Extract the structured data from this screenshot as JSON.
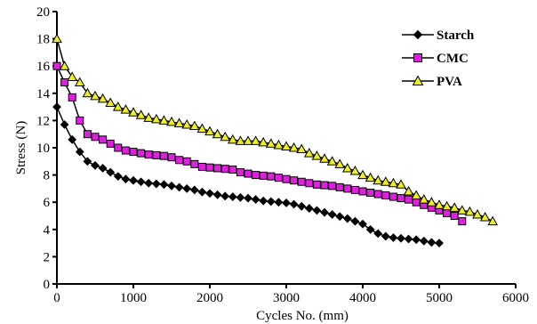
{
  "chart_data": {
    "type": "line",
    "xlabel": "Cycles No. (mm)",
    "ylabel": "Stress (N)",
    "xlim": [
      0,
      6000
    ],
    "ylim": [
      0,
      20
    ],
    "x_ticks": [
      0,
      1000,
      2000,
      3000,
      4000,
      5000,
      6000
    ],
    "y_ticks": [
      0,
      2,
      4,
      6,
      8,
      10,
      12,
      14,
      16,
      18,
      20
    ],
    "grid": false,
    "legend_position": "top-right",
    "series": [
      {
        "name": "Starch",
        "marker": "diamond",
        "color": "#000000",
        "fill": "#000000",
        "x": [
          0,
          100,
          200,
          300,
          400,
          500,
          600,
          700,
          800,
          900,
          1000,
          1100,
          1200,
          1300,
          1400,
          1500,
          1600,
          1700,
          1800,
          1900,
          2000,
          2100,
          2200,
          2300,
          2400,
          2500,
          2600,
          2700,
          2800,
          2900,
          3000,
          3100,
          3200,
          3300,
          3400,
          3500,
          3600,
          3700,
          3800,
          3900,
          4000,
          4100,
          4200,
          4300,
          4400,
          4500,
          4600,
          4700,
          4800,
          4900,
          5000
        ],
        "y": [
          13.0,
          11.7,
          10.6,
          9.7,
          9.0,
          8.7,
          8.5,
          8.2,
          7.9,
          7.7,
          7.6,
          7.5,
          7.4,
          7.35,
          7.3,
          7.2,
          7.1,
          7.0,
          6.9,
          6.75,
          6.65,
          6.55,
          6.45,
          6.4,
          6.35,
          6.3,
          6.2,
          6.1,
          6.05,
          6.0,
          5.95,
          5.85,
          5.7,
          5.55,
          5.4,
          5.25,
          5.1,
          4.95,
          4.8,
          4.6,
          4.4,
          4.0,
          3.7,
          3.5,
          3.4,
          3.35,
          3.3,
          3.25,
          3.15,
          3.05,
          3.0
        ]
      },
      {
        "name": "CMC",
        "marker": "square",
        "color": "#000000",
        "fill": "#e020e0",
        "x": [
          0,
          100,
          200,
          300,
          400,
          500,
          600,
          700,
          800,
          900,
          1000,
          1100,
          1200,
          1300,
          1400,
          1500,
          1600,
          1700,
          1800,
          1900,
          2000,
          2100,
          2200,
          2300,
          2400,
          2500,
          2600,
          2700,
          2800,
          2900,
          3000,
          3100,
          3200,
          3300,
          3400,
          3500,
          3600,
          3700,
          3800,
          3900,
          4000,
          4100,
          4200,
          4300,
          4400,
          4500,
          4600,
          4700,
          4800,
          4900,
          5000,
          5100,
          5200,
          5300
        ],
        "y": [
          16.0,
          14.8,
          13.7,
          12.0,
          11.0,
          10.8,
          10.6,
          10.3,
          10.0,
          9.8,
          9.7,
          9.6,
          9.5,
          9.45,
          9.4,
          9.3,
          9.1,
          9.0,
          8.8,
          8.6,
          8.55,
          8.5,
          8.45,
          8.4,
          8.2,
          8.1,
          8.0,
          7.95,
          7.9,
          7.8,
          7.7,
          7.6,
          7.5,
          7.4,
          7.3,
          7.25,
          7.2,
          7.1,
          7.0,
          6.9,
          6.8,
          6.7,
          6.6,
          6.5,
          6.4,
          6.3,
          6.2,
          6.0,
          5.8,
          5.6,
          5.4,
          5.2,
          5.0,
          4.6
        ]
      },
      {
        "name": "PVA",
        "marker": "triangle",
        "color": "#000000",
        "fill": "#f0f020",
        "x": [
          0,
          100,
          200,
          300,
          400,
          500,
          600,
          700,
          800,
          900,
          1000,
          1100,
          1200,
          1300,
          1400,
          1500,
          1600,
          1700,
          1800,
          1900,
          2000,
          2100,
          2200,
          2300,
          2400,
          2500,
          2600,
          2700,
          2800,
          2900,
          3000,
          3100,
          3200,
          3300,
          3400,
          3500,
          3600,
          3700,
          3800,
          3900,
          4000,
          4100,
          4200,
          4300,
          4400,
          4500,
          4600,
          4700,
          4800,
          4900,
          5000,
          5100,
          5200,
          5300,
          5400,
          5500,
          5600,
          5700
        ],
        "y": [
          18.0,
          16.0,
          15.2,
          14.8,
          14.0,
          13.8,
          13.6,
          13.3,
          13.0,
          12.8,
          12.6,
          12.4,
          12.2,
          12.1,
          12.0,
          11.9,
          11.8,
          11.7,
          11.6,
          11.4,
          11.2,
          11.0,
          10.8,
          10.6,
          10.5,
          10.5,
          10.5,
          10.4,
          10.3,
          10.2,
          10.1,
          10.0,
          9.9,
          9.6,
          9.4,
          9.2,
          9.0,
          8.8,
          8.5,
          8.3,
          8.0,
          7.8,
          7.6,
          7.5,
          7.4,
          7.3,
          6.8,
          6.5,
          6.2,
          6.0,
          5.8,
          5.7,
          5.6,
          5.4,
          5.3,
          5.1,
          4.9,
          4.6
        ]
      }
    ]
  }
}
